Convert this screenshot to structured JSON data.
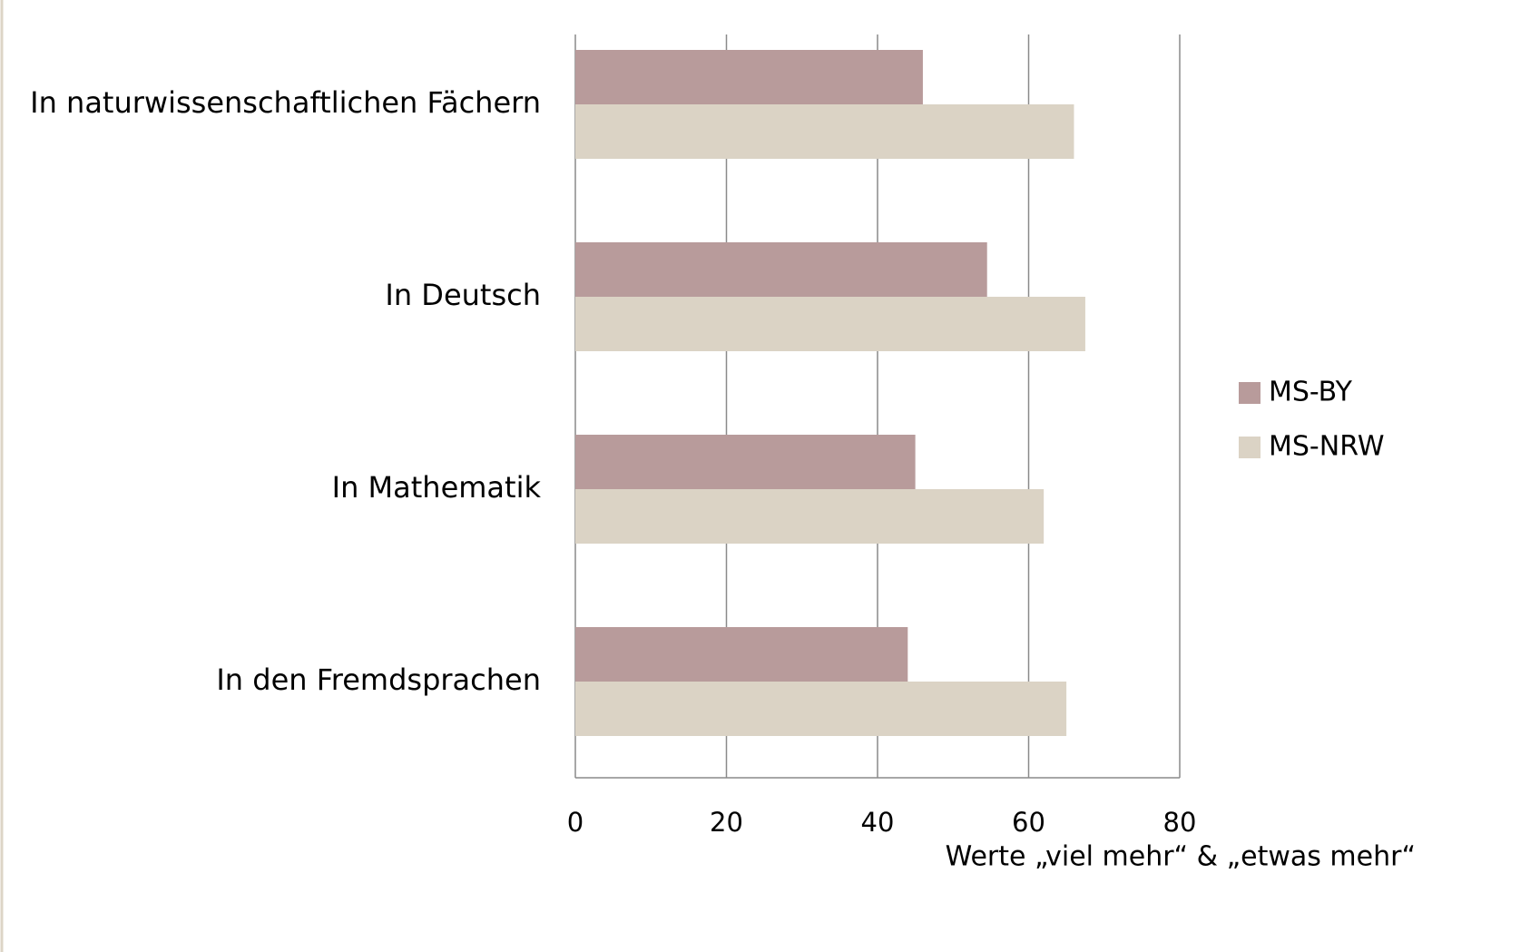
{
  "chart_data": {
    "type": "bar",
    "orientation": "horizontal",
    "x_label": "Werte „viel mehr“ & „etwas mehr“",
    "categories": [
      "In naturwissenschaftlichen Fächern",
      "In Deutsch",
      "In Mathematik",
      "In den Fremdsprachen"
    ],
    "series": [
      {
        "name": "MS-BY",
        "color": "#b89b9b",
        "values": [
          46,
          54.5,
          45,
          44
        ]
      },
      {
        "name": "MS-NRW",
        "color": "#dbd3c5",
        "values": [
          66,
          67.5,
          62,
          65
        ]
      }
    ],
    "xlim": [
      0,
      80
    ],
    "xticks": [
      0,
      20,
      40,
      60,
      80
    ],
    "grid": true,
    "legend": "right"
  }
}
